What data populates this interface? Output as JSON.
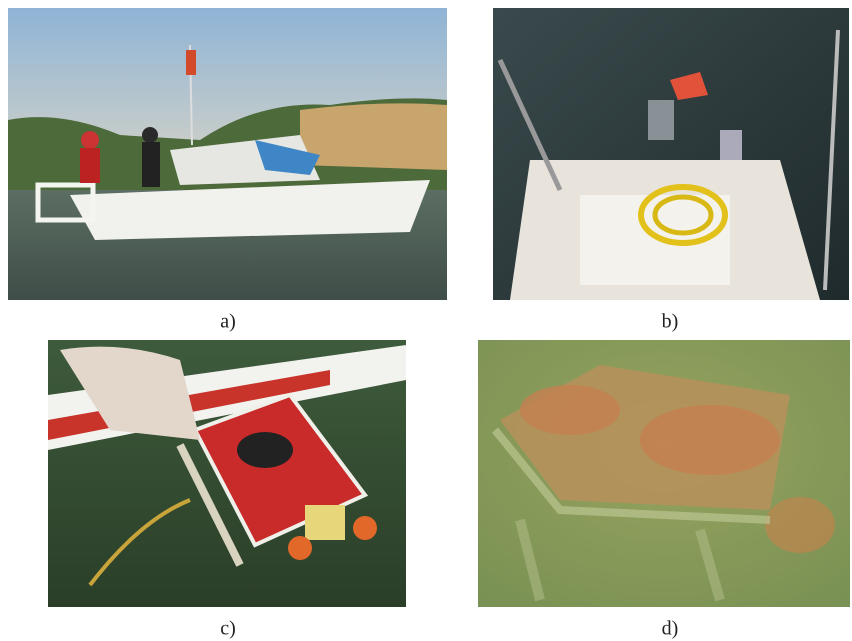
{
  "figure": {
    "panels": [
      {
        "label": "a)"
      },
      {
        "label": "b)"
      },
      {
        "label": "c)"
      },
      {
        "label": "d)"
      }
    ]
  }
}
